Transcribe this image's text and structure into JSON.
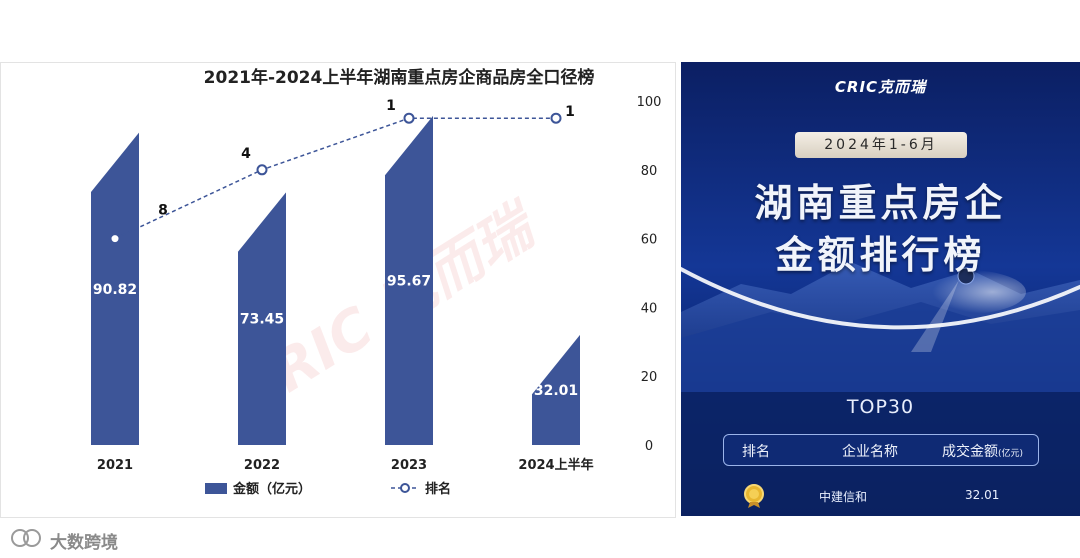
{
  "chart_data": {
    "type": "bar",
    "title": "2021年-2024上半年湖南重点房企商品房全口径榜",
    "categories": [
      "2021",
      "2022",
      "2023",
      "2024上半年"
    ],
    "series": [
      {
        "name": "金额（亿元）",
        "type": "bar",
        "values": [
          90.82,
          73.45,
          95.67,
          32.01
        ],
        "color": "#3d5598"
      },
      {
        "name": "排名",
        "type": "line",
        "values": [
          8,
          4,
          1,
          1
        ],
        "color": "#3d5598"
      }
    ],
    "ylim": [
      0,
      100
    ],
    "yticks": [
      0,
      20,
      40,
      60,
      80,
      100
    ],
    "legend": "bottom",
    "grid": false,
    "watermark": "CRIC 克而瑞"
  },
  "poster": {
    "brand": "CRIC克而瑞",
    "date": "2024年1-6月",
    "headline_line1": "湖南重点房企",
    "headline_line2": "金额排行榜",
    "subtitle": "TOP30",
    "table": {
      "col_rank": "排名",
      "col_name": "企业名称",
      "col_amount": "成交金额",
      "col_amount_unit": "(亿元)"
    },
    "rows": [
      {
        "name": "中建信和",
        "amount": "32.01",
        "medal": "gold-medal-icon"
      }
    ]
  },
  "footer": {
    "logo_text": "大数跨境",
    "logo_icon": "dashuju-logo-icon"
  }
}
